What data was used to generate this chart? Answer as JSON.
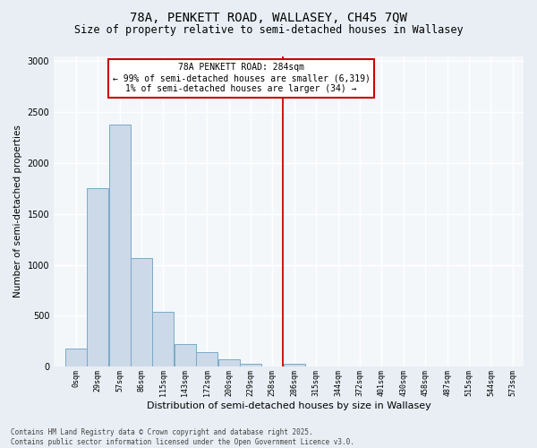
{
  "title1": "78A, PENKETT ROAD, WALLASEY, CH45 7QW",
  "title2": "Size of property relative to semi-detached houses in Wallasey",
  "xlabel": "Distribution of semi-detached houses by size in Wallasey",
  "ylabel": "Number of semi-detached properties",
  "bar_left_edges": [
    0,
    28.5,
    57,
    85.5,
    114,
    142.5,
    171,
    199.5,
    228,
    256.5,
    285,
    313.5,
    342,
    370.5,
    399,
    427.5,
    456,
    484.5,
    513,
    541.5,
    570
  ],
  "bar_heights": [
    175,
    1750,
    2380,
    1070,
    540,
    220,
    140,
    75,
    30,
    5,
    30,
    0,
    0,
    0,
    0,
    0,
    0,
    0,
    0,
    0,
    0
  ],
  "bar_width": 28.5,
  "bar_color": "#ccd9e8",
  "bar_edge_color": "#7aaac8",
  "tick_labels": [
    "0sqm",
    "29sqm",
    "57sqm",
    "86sqm",
    "115sqm",
    "143sqm",
    "172sqm",
    "200sqm",
    "229sqm",
    "258sqm",
    "286sqm",
    "315sqm",
    "344sqm",
    "372sqm",
    "401sqm",
    "430sqm",
    "458sqm",
    "487sqm",
    "515sqm",
    "544sqm",
    "573sqm"
  ],
  "tick_positions": [
    0,
    28.5,
    57,
    85.5,
    114,
    142.5,
    171,
    199.5,
    228,
    256.5,
    285,
    313.5,
    342,
    370.5,
    399,
    427.5,
    456,
    484.5,
    513,
    541.5,
    570
  ],
  "ylim": [
    0,
    3050
  ],
  "xlim": [
    -14.5,
    598.5
  ],
  "vline_x": 284,
  "vline_color": "#cc0000",
  "annotation_title": "78A PENKETT ROAD: 284sqm",
  "annotation_line1": "← 99% of semi-detached houses are smaller (6,319)",
  "annotation_line2": "1% of semi-detached houses are larger (34) →",
  "annotation_box_color": "#cc0000",
  "annotation_bg": "#ffffff",
  "footer_line1": "Contains HM Land Registry data © Crown copyright and database right 2025.",
  "footer_line2": "Contains public sector information licensed under the Open Government Licence v3.0.",
  "bg_color": "#e8eef4",
  "plot_bg_color": "#f4f7fa",
  "grid_color": "#ffffff",
  "yticks": [
    0,
    500,
    1000,
    1500,
    2000,
    2500,
    3000
  ],
  "title1_fontsize": 10,
  "title2_fontsize": 8.5,
  "xlabel_fontsize": 8,
  "ylabel_fontsize": 7.5,
  "tick_fontsize": 6,
  "footer_fontsize": 5.5
}
